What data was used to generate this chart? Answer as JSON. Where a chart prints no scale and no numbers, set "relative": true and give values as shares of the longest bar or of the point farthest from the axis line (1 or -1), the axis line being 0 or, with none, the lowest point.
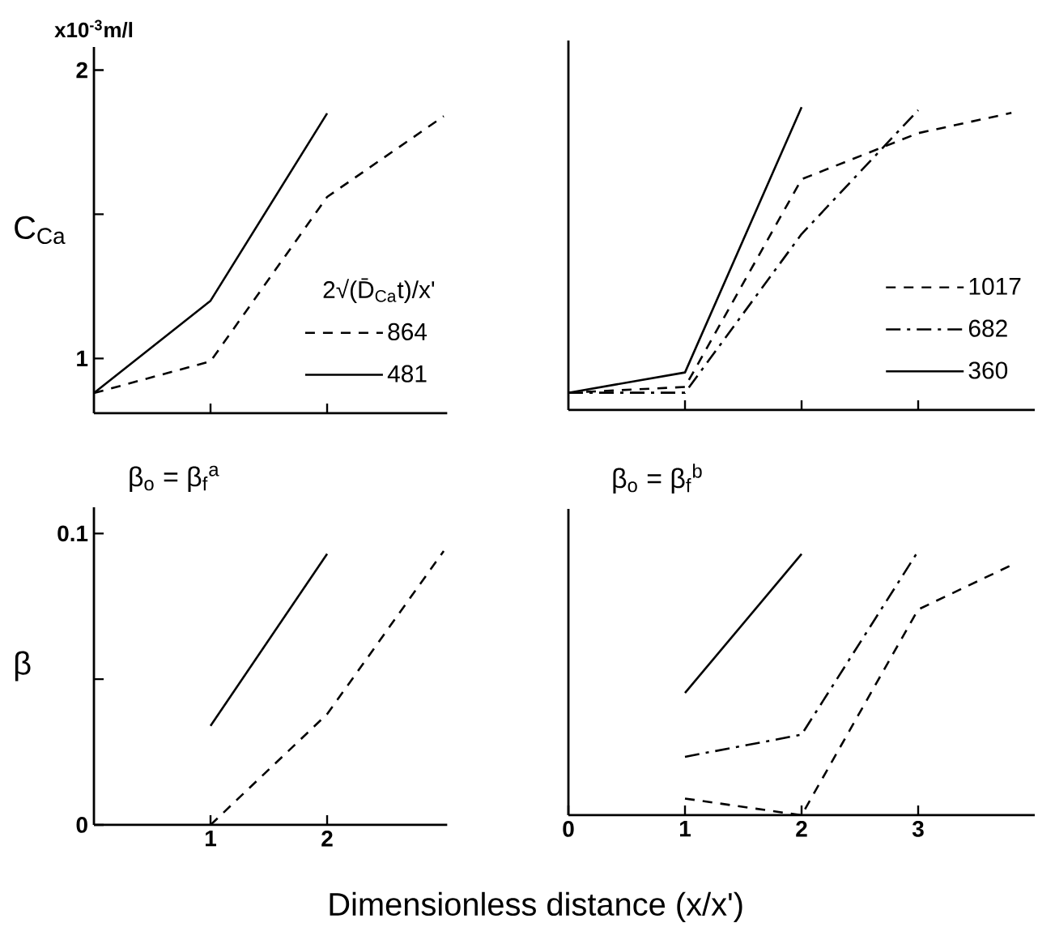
{
  "chart_data": [
    {
      "type": "line",
      "ylabel": "C$_{Ca}$",
      "legend_title": "2√(D̄$_{Ca}$t)/x'",
      "legend": "bottom right",
      "tick_labels": "y",
      "annotations": [
        "x10$^{-3}$m/l"
      ],
      "xlim": [
        0,
        3.03
      ],
      "ylim": [
        0.81,
        2.08
      ],
      "xticks": [
        {
          "value": 1,
          "label": null
        },
        {
          "value": 2,
          "label": null
        }
      ],
      "yticks": [
        1,
        {
          "value": 1.5,
          "label": null
        },
        2
      ],
      "series": [
        {
          "name": "864",
          "color": "#000000",
          "line_style": "dashed",
          "x": [
            0,
            1,
            2,
            3
          ],
          "values": [
            0.88,
            0.99,
            1.56,
            1.84
          ]
        },
        {
          "name": "481",
          "color": "#000000",
          "line_style": "solid",
          "x": [
            0,
            1,
            2
          ],
          "values": [
            0.88,
            1.2,
            1.85
          ]
        }
      ]
    },
    {
      "type": "line",
      "legend": "bottom right",
      "tick_labels": false,
      "relative": true,
      "xlim": [
        0,
        4.0
      ],
      "xticks": [
        {
          "value": 1,
          "label": null
        },
        {
          "value": 2,
          "label": null
        },
        {
          "value": 3,
          "label": null
        }
      ],
      "series": [
        {
          "name": "1017",
          "color": "#000000",
          "line_style": "dashed",
          "x": [
            0,
            1,
            2,
            3,
            3.8
          ],
          "values": [
            0.057,
            0.076,
            0.762,
            0.914,
            0.981
          ]
        },
        {
          "name": "682",
          "color": "#000000",
          "line_style": "dashdot",
          "x": [
            0,
            1,
            2,
            3
          ],
          "values": [
            0.057,
            0.057,
            0.581,
            0.99
          ]
        },
        {
          "name": "360",
          "color": "#000000",
          "line_style": "solid",
          "x": [
            0,
            1,
            2
          ],
          "values": [
            0.057,
            0.124,
            1
          ]
        }
      ]
    },
    {
      "type": "line",
      "title": "β$_{o}$ = β$_{f}$$^{a}$",
      "ylabel": "β",
      "xlim": [
        0,
        3.03
      ],
      "ylim": [
        0,
        0.109
      ],
      "xticks": [
        1,
        2
      ],
      "yticks": [
        {
          "value": 0,
          "label": "0"
        },
        {
          "value": 0.05,
          "label": null
        },
        0.1
      ],
      "series": [
        {
          "color": "#000000",
          "line_style": "solid",
          "x": [
            1,
            2
          ],
          "values": [
            0.034,
            0.093
          ]
        },
        {
          "color": "#000000",
          "line_style": "dashed",
          "x": [
            1,
            2,
            3
          ],
          "values": [
            0,
            0.038,
            0.094
          ]
        }
      ]
    },
    {
      "type": "line",
      "title": "β$_{o}$ = β$_{f}$$^{b}$",
      "xlabel": "Dimensionless distance (x/x')",
      "tick_labels": "x",
      "relative": true,
      "xlim": [
        0,
        4.0
      ],
      "xticks": [
        0,
        1,
        2,
        3
      ],
      "series": [
        {
          "color": "#000000",
          "line_style": "solid",
          "x": [
            1,
            2
          ],
          "values": [
            0.463,
            0.989
          ]
        },
        {
          "color": "#000000",
          "line_style": "dashdot",
          "x": [
            1,
            2,
            3
          ],
          "values": [
            0.221,
            0.305,
            1
          ]
        },
        {
          "color": "#000000",
          "line_style": "dashed",
          "x": [
            1,
            2,
            3,
            3.8
          ],
          "values": [
            0.063,
            0,
            0.779,
            0.947
          ]
        }
      ]
    }
  ]
}
